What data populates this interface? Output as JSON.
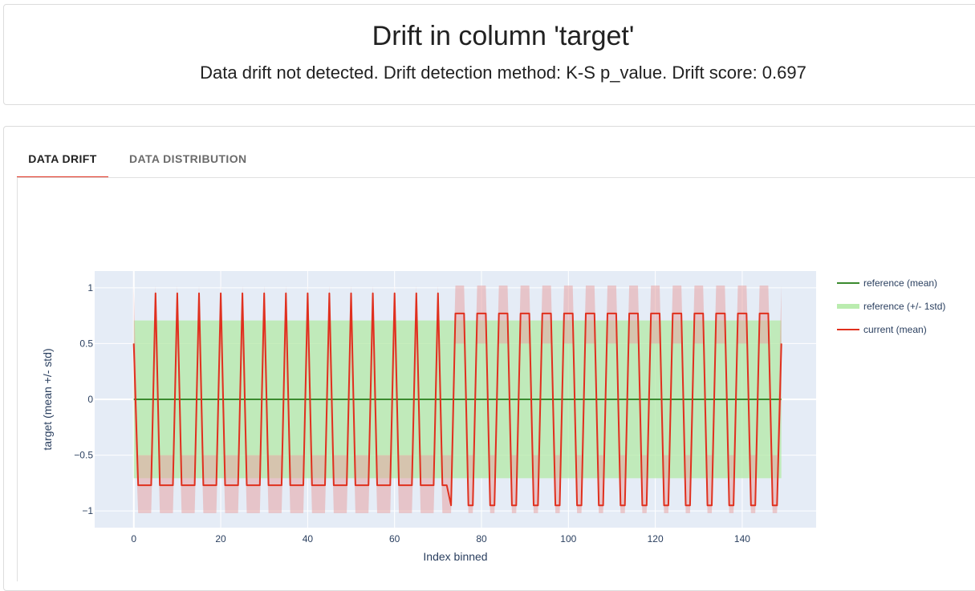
{
  "header": {
    "title": "Drift in column 'target'",
    "subtitle": "Data drift not detected. Drift detection method: K-S p_value. Drift score: 0.697"
  },
  "tabs": [
    {
      "label": "DATA DRIFT",
      "active": true
    },
    {
      "label": "DATA DISTRIBUTION",
      "active": false
    }
  ],
  "colors": {
    "accent": "#e0301e",
    "plot_bg": "#e5ecf6",
    "reference_line": "#3a8a2e",
    "reference_band": "#b3eaa6",
    "current_line": "#e0301e",
    "current_band": "#e8a4a4"
  },
  "chart_data": {
    "type": "line",
    "xlabel": "Index binned",
    "ylabel": "target (mean +/- std)",
    "xlim": [
      -9,
      157
    ],
    "ylim": [
      -1.15,
      1.15
    ],
    "xticks": [
      0,
      20,
      40,
      60,
      80,
      100,
      120,
      140
    ],
    "yticks": [
      -1,
      -0.5,
      0,
      0.5,
      1
    ],
    "ytick_labels": [
      "−1",
      "−0.5",
      "0",
      "0.5",
      "1"
    ],
    "grid": true,
    "legend_position": "right",
    "legend": [
      "reference (mean)",
      "reference (+/- 1std)",
      "current (mean)"
    ],
    "reference": {
      "x_range": [
        0,
        149
      ],
      "mean": 0,
      "std": 0.707
    },
    "current": {
      "x_range": [
        0,
        149
      ],
      "period": 5,
      "phase_deg": 90,
      "start_value": 0.5,
      "end_value": 0.5,
      "section1_end": 72,
      "section1_mean_max": 0.95,
      "section1_mean_min": -0.77,
      "section2_mean_max": 0.77,
      "section2_mean_min": -0.95,
      "band_max": 1.02,
      "band_min": -1.02,
      "band_plateau_hi": 0.5,
      "band_plateau_lo": -0.5
    }
  }
}
